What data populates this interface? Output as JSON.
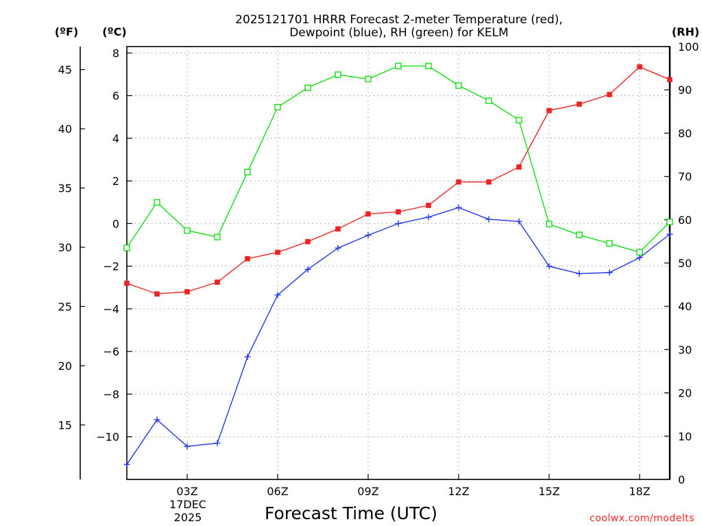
{
  "chart_data": {
    "type": "line",
    "title_line1": "2025121701 HRRR Forecast 2-meter Temperature (red),",
    "title_line2": "Dewpoint (blue), RH (green) for KELM",
    "xlabel": "Forecast Time (UTC)",
    "credit": "coolwx.com/modelts",
    "units": {
      "fahrenheit": "(ºF)",
      "celsius": "(ºC)",
      "rh": "(RH)"
    },
    "x_hours": [
      1,
      2,
      3,
      4,
      5,
      6,
      7,
      8,
      9,
      10,
      11,
      12,
      13,
      14,
      15,
      16,
      17,
      18,
      19
    ],
    "xlim": [
      1,
      19
    ],
    "x_ticks": [
      {
        "hour": 3,
        "label": "03Z"
      },
      {
        "hour": 6,
        "label": "06Z"
      },
      {
        "hour": 9,
        "label": "09Z"
      },
      {
        "hour": 12,
        "label": "12Z"
      },
      {
        "hour": 15,
        "label": "15Z"
      },
      {
        "hour": 18,
        "label": "18Z"
      }
    ],
    "date_line1": "17DEC",
    "date_line2": "2025",
    "celsius_axis": {
      "range": [
        -12,
        8.3
      ],
      "ticks": [
        8,
        6,
        4,
        2,
        0,
        -2,
        -4,
        -6,
        -8,
        -10
      ],
      "tick_labels": [
        "8",
        "6",
        "4",
        "2",
        "0",
        "−2",
        "−4",
        "−6",
        "−8",
        "−10"
      ]
    },
    "fahrenheit_axis": {
      "ticks": [
        45,
        40,
        35,
        30,
        25,
        20,
        15
      ],
      "tick_labels": [
        "45",
        "40",
        "35",
        "30",
        "25",
        "20",
        "15"
      ]
    },
    "rh_axis": {
      "range": [
        0,
        100
      ],
      "ticks": [
        100,
        90,
        80,
        70,
        60,
        50,
        40,
        30,
        20,
        10,
        0
      ],
      "tick_labels": [
        "100",
        "90",
        "80",
        "70",
        "60",
        "50",
        "40",
        "30",
        "20",
        "10",
        "0"
      ]
    },
    "series": [
      {
        "name": "2-meter Temperature",
        "unit": "C",
        "color": "#ee2222",
        "marker": "filled-square",
        "values": [
          -2.8,
          -3.3,
          -3.2,
          -2.75,
          -1.65,
          -1.35,
          -0.85,
          -0.25,
          0.45,
          0.55,
          0.85,
          1.95,
          1.95,
          2.65,
          5.3,
          5.6,
          6.05,
          7.35,
          6.75
        ]
      },
      {
        "name": "Dewpoint",
        "unit": "C",
        "color": "#2233ee",
        "marker": "plus",
        "values": [
          -11.3,
          -9.2,
          -10.45,
          -10.3,
          -6.25,
          -3.35,
          -2.15,
          -1.15,
          -0.55,
          0.0,
          0.3,
          0.75,
          0.2,
          0.1,
          -2.0,
          -2.35,
          -2.3,
          -1.6,
          -0.5
        ]
      },
      {
        "name": "Relative Humidity",
        "unit": "%",
        "color": "#11dd11",
        "marker": "open-square",
        "values": [
          53.5,
          64.0,
          57.5,
          56.0,
          71.0,
          86.0,
          90.5,
          93.5,
          92.5,
          95.5,
          95.5,
          91.0,
          87.5,
          83.0,
          59.0,
          56.5,
          54.5,
          52.5,
          59.5
        ]
      }
    ]
  }
}
